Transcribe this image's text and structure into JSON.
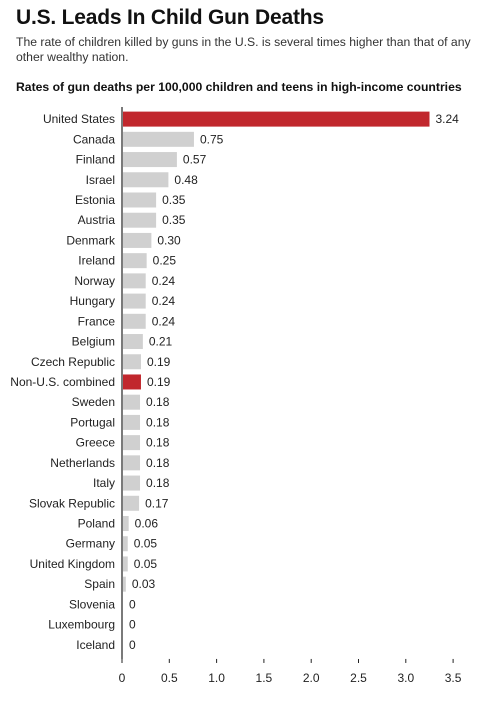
{
  "header": {
    "title": "U.S. Leads In Child Gun Deaths",
    "subtitle": "The rate of children killed by guns in the U.S. is several times higher than that of any other wealthy nation."
  },
  "colors": {
    "highlight": "#c1272d",
    "bar": "#d0d0d0",
    "axis": "#222222"
  },
  "chart_data": {
    "type": "bar",
    "orientation": "horizontal",
    "title": "Rates of gun deaths per 100,000 children and teens in high-income countries",
    "xlabel": "",
    "ylabel": "",
    "xlim": [
      0,
      3.5
    ],
    "xticks": [
      "0",
      "0.5",
      "1.0",
      "1.5",
      "2.0",
      "2.5",
      "3.0",
      "3.5"
    ],
    "grid": false,
    "categories": [
      "United States",
      "Canada",
      "Finland",
      "Israel",
      "Estonia",
      "Austria",
      "Denmark",
      "Ireland",
      "Norway",
      "Hungary",
      "France",
      "Belgium",
      "Czech Republic",
      "Non-U.S. combined",
      "Sweden",
      "Portugal",
      "Greece",
      "Netherlands",
      "Italy",
      "Slovak Republic",
      "Poland",
      "Germany",
      "United Kingdom",
      "Spain",
      "Slovenia",
      "Luxembourg",
      "Iceland"
    ],
    "values": [
      3.24,
      0.75,
      0.57,
      0.48,
      0.35,
      0.35,
      0.3,
      0.25,
      0.24,
      0.24,
      0.24,
      0.21,
      0.19,
      0.19,
      0.18,
      0.18,
      0.18,
      0.18,
      0.18,
      0.17,
      0.06,
      0.05,
      0.05,
      0.03,
      0,
      0,
      0
    ],
    "value_labels": [
      "3.24",
      "0.75",
      "0.57",
      "0.48",
      "0.35",
      "0.35",
      "0.30",
      "0.25",
      "0.24",
      "0.24",
      "0.24",
      "0.21",
      "0.19",
      "0.19",
      "0.18",
      "0.18",
      "0.18",
      "0.18",
      "0.18",
      "0.17",
      "0.06",
      "0.05",
      "0.05",
      "0.03",
      "0",
      "0",
      "0"
    ],
    "highlighted": [
      "United States",
      "Non-U.S. combined"
    ]
  }
}
